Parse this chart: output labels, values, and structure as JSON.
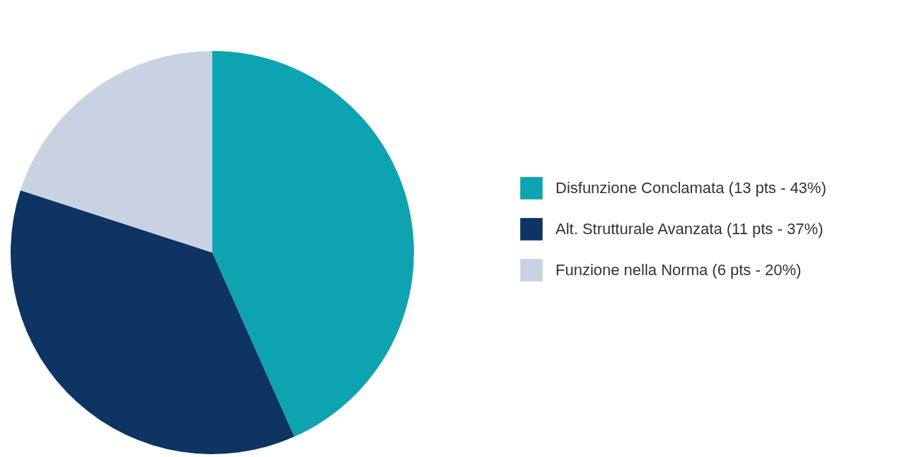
{
  "chart_data": {
    "type": "pie",
    "categories": [
      "Disfunzione Conclamata (13 pts - 43%)",
      "Alt. Strutturale Avanzata (11 pts - 37%)",
      "Funzione nella Norma (6 pts - 20%)"
    ],
    "values": [
      13,
      11,
      6
    ],
    "colors": [
      "#0ea3b0",
      "#0d3463",
      "#c9d2e2"
    ],
    "legend": "right"
  }
}
